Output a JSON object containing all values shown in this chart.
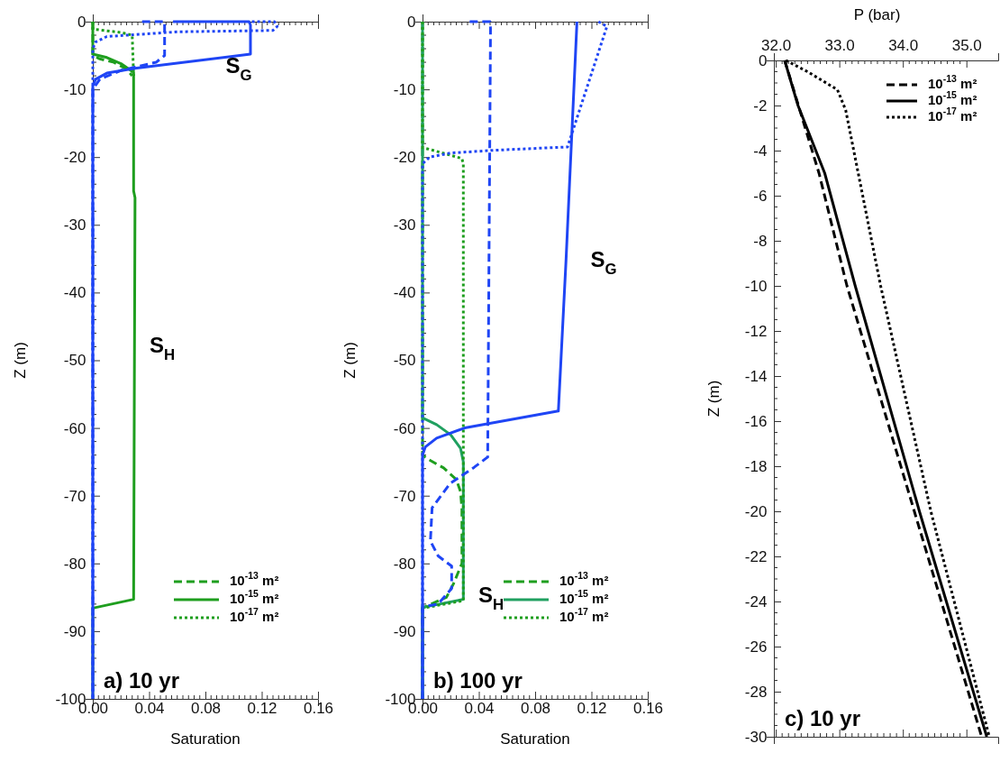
{
  "chart_data": [
    {
      "type": "line",
      "title": "a) 10 yr",
      "xlabel": "Saturation",
      "ylabel": "Z (m)",
      "xlim": [
        0,
        0.16
      ],
      "xticks": [
        {
          "value": 0,
          "label": "0.00"
        },
        {
          "value": 0.04,
          "label": "0.04"
        },
        {
          "value": 0.08,
          "label": "0.08"
        },
        {
          "value": 0.12,
          "label": "0.12"
        },
        {
          "value": 0.16,
          "label": "0.16"
        }
      ],
      "ylim": [
        -100,
        0
      ],
      "yticks": [
        0,
        -10,
        -20,
        -30,
        -40,
        -50,
        -60,
        -70,
        -80,
        -90,
        -100
      ],
      "legend": "bottom right",
      "grid": false,
      "marker": "none",
      "annotations": [
        "S$_{G}$",
        "S$_{H}$"
      ],
      "series": [
        {
          "name": "10$^{-13}$ m²",
          "color": "#1e9e1e",
          "line_style": "dashed",
          "x": [
            0,
            0,
            0.005,
            0.015,
            0.024,
            0.028
          ],
          "values": [
            0,
            -5,
            -5.5,
            -6,
            -7,
            -8
          ]
        },
        {
          "name": "10$^{-15}$ m²",
          "color": "#1e9e1e",
          "line_style": "solid",
          "x": [
            0,
            0,
            0.01,
            0.02,
            0.029,
            0.029,
            0.03,
            0.029,
            0,
            0
          ],
          "values": [
            0,
            -4.8,
            -5.3,
            -6.2,
            -7.5,
            -25,
            -26,
            -85.3,
            -86.6,
            -100
          ]
        },
        {
          "name": "10$^{-17}$ m²",
          "color": "#1e9e1e",
          "line_style": "dotted",
          "x": [
            0,
            0,
            0.02,
            0.028,
            0.029
          ],
          "values": [
            0,
            -1.1,
            -1.6,
            -2,
            -8
          ]
        },
        {
          "color": "#1f45f5",
          "line_style": "dashed",
          "x": [
            0.035,
            0.051,
            0.051,
            0.045,
            0.02,
            0.005,
            0,
            0
          ],
          "values": [
            0,
            0,
            -5,
            -6,
            -7.2,
            -8.5,
            -10,
            -100
          ]
        },
        {
          "color": "#1f45f5",
          "line_style": "solid",
          "x": [
            0.057,
            0.111,
            0.112,
            0.112,
            0.03,
            0.01,
            0.002,
            0,
            0
          ],
          "values": [
            0,
            0,
            -0.5,
            -4.8,
            -6.9,
            -7.6,
            -8.5,
            -9.5,
            -100
          ]
        },
        {
          "color": "#1f45f5",
          "line_style": "dotted",
          "x": [
            0.113,
            0.129,
            0.131,
            0.128,
            0.06,
            0.01,
            0.002,
            0,
            0
          ],
          "values": [
            0,
            0,
            -0.7,
            -1.3,
            -1.5,
            -2.2,
            -3,
            -4,
            -100
          ]
        }
      ]
    },
    {
      "type": "line",
      "title": "b) 100 yr",
      "xlabel": "Saturation",
      "ylabel": "Z (m)",
      "xlim": [
        0,
        0.16
      ],
      "xticks": [
        {
          "value": 0,
          "label": "0.00"
        },
        {
          "value": 0.04,
          "label": "0.04"
        },
        {
          "value": 0.08,
          "label": "0.08"
        },
        {
          "value": 0.12,
          "label": "0.12"
        },
        {
          "value": 0.16,
          "label": "0.16"
        }
      ],
      "ylim": [
        -100,
        0
      ],
      "yticks": [
        0,
        -10,
        -20,
        -30,
        -40,
        -50,
        -60,
        -70,
        -80,
        -90,
        -100
      ],
      "legend": "bottom right",
      "grid": false,
      "marker": "none",
      "annotations": [
        "S$_{G}$",
        "S$_{H}$"
      ],
      "series": [
        {
          "name": "10$^{-13}$ m²",
          "color": "#1e9e1e",
          "line_style": "dashed",
          "x": [
            0,
            0,
            0.003,
            0.015,
            0.024,
            0.027,
            0.028,
            0.028,
            0.022,
            0.017,
            0.006,
            0,
            0
          ],
          "values": [
            0,
            -64,
            -64.5,
            -65.9,
            -67.6,
            -69.4,
            -72,
            -80,
            -83,
            -85,
            -86,
            -86.6,
            -100
          ]
        },
        {
          "name": "10$^{-15}$ m²",
          "color": "#20a060",
          "line_style": "solid",
          "x": [
            0,
            0,
            0.01,
            0.02,
            0.027,
            0.029,
            0.029,
            0,
            0
          ],
          "values": [
            0,
            -58.5,
            -59.5,
            -61,
            -63,
            -65,
            -85.3,
            -86.5,
            -100
          ]
        },
        {
          "name": "10$^{-17}$ m²",
          "color": "#1e9e1e",
          "line_style": "dotted",
          "x": [
            0,
            0,
            0.004,
            0.028,
            0.029,
            0.029,
            0,
            0
          ],
          "values": [
            0,
            -18.6,
            -18.8,
            -20.2,
            -21,
            -85.5,
            -86.6,
            -100
          ]
        },
        {
          "color": "#1f45f5",
          "line_style": "dashed",
          "x": [
            0.0335,
            0.048,
            0.0483,
            0.0463,
            0.0367,
            0.0196,
            0.0068,
            0.0056,
            0.0111,
            0.0207,
            0.0207,
            0.011,
            0,
            0
          ],
          "values": [
            0,
            0,
            -1,
            -64.3,
            -65.8,
            -68.2,
            -71.8,
            -76.7,
            -78.9,
            -80.4,
            -83.7,
            -86,
            -86.4,
            -100
          ]
        },
        {
          "color": "#1f45f5",
          "line_style": "solid",
          "x": [
            0.1097,
            0.1095,
            0.102,
            0.0965,
            0.03,
            0.01,
            0.002,
            0,
            0
          ],
          "values": [
            0,
            -1,
            -35,
            -57.5,
            -60,
            -61.5,
            -62.8,
            -64,
            -100
          ]
        },
        {
          "color": "#1f45f5",
          "line_style": "dotted",
          "x": [
            0.125,
            0.131,
            0.103,
            0.05,
            0.02,
            0.005,
            0,
            0
          ],
          "values": [
            0,
            -0.7,
            -18.5,
            -19,
            -19.4,
            -20,
            -21,
            -100
          ]
        }
      ]
    },
    {
      "type": "line",
      "title": "c) 10 yr",
      "xlabel": "P (bar)",
      "ylabel": "Z (m)",
      "xlim": [
        31.97,
        35.5
      ],
      "xticks": [
        {
          "value": 32,
          "label": "32.0"
        },
        {
          "value": 33,
          "label": "33.0"
        },
        {
          "value": 34,
          "label": "34.0"
        },
        {
          "value": 35,
          "label": "35.0"
        }
      ],
      "ylim": [
        -30,
        0
      ],
      "yticks": [
        0,
        -2,
        -4,
        -6,
        -8,
        -10,
        -12,
        -14,
        -16,
        -18,
        -20,
        -22,
        -24,
        -26,
        -28,
        -30
      ],
      "legend": "top right",
      "grid": false,
      "marker": "none",
      "series": [
        {
          "name": "10$^{-13}$ m²",
          "color": "#000000",
          "line_style": "dashed",
          "x": [
            32.14,
            32.68,
            33.12,
            34.18,
            35.24
          ],
          "values": [
            0,
            -5,
            -10,
            -20,
            -30
          ]
        },
        {
          "name": "10$^{-15}$ m²",
          "color": "#000000",
          "line_style": "solid",
          "x": [
            32.14,
            32.35,
            32.77,
            33.25,
            34.26,
            35.32
          ],
          "values": [
            0,
            -2,
            -5,
            -10,
            -20,
            -30
          ]
        },
        {
          "name": "10$^{-17}$ m²",
          "color": "#000000",
          "line_style": "dotted",
          "x": [
            32.16,
            32.5,
            32.97,
            33.1,
            33.65,
            34.44,
            35.36
          ],
          "values": [
            0,
            -0.5,
            -1.3,
            -2.2,
            -10,
            -20,
            -30
          ]
        }
      ]
    }
  ]
}
